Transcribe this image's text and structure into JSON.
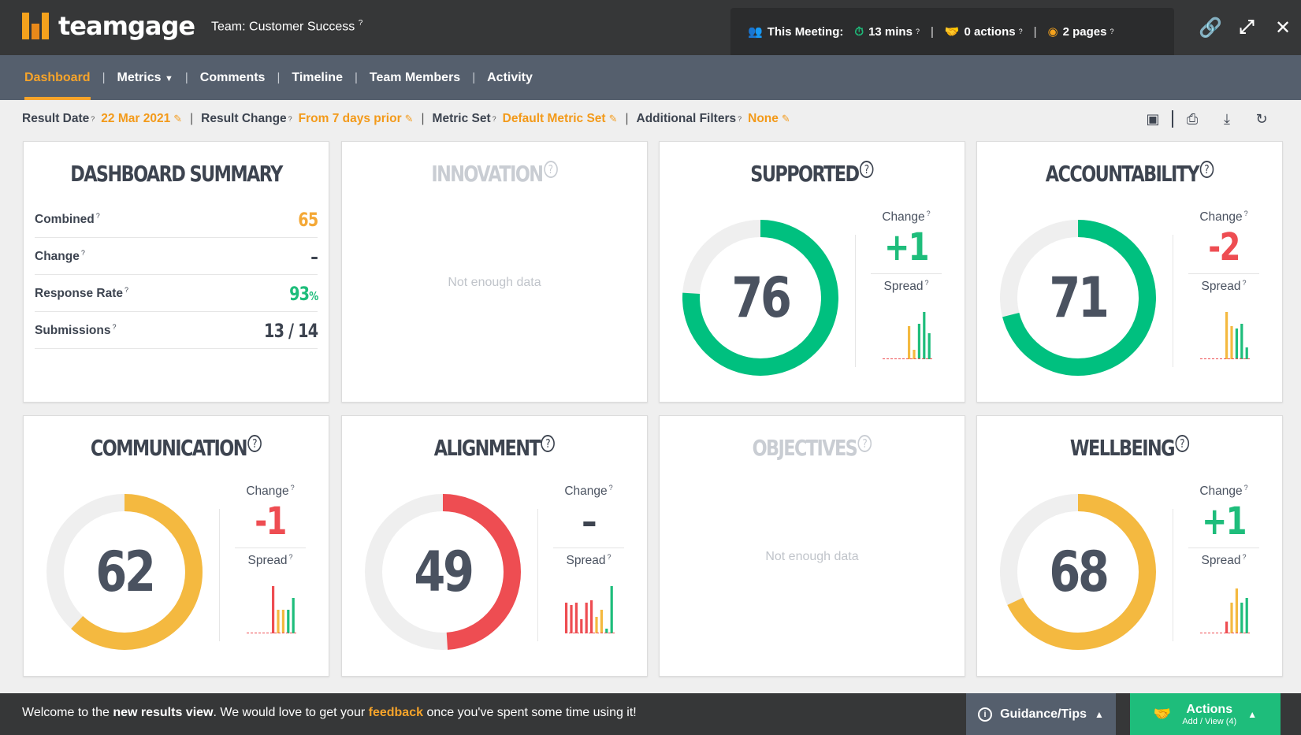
{
  "app": {
    "logo_text": "teamgage",
    "team_label": "Team:",
    "team_name": "Customer Success"
  },
  "meeting": {
    "label": "This Meeting:",
    "duration": "13 mins",
    "actions": "0 actions",
    "pages": "2 pages"
  },
  "nav": [
    "Dashboard",
    "Metrics",
    "Comments",
    "Timeline",
    "Team Members",
    "Activity"
  ],
  "filters": {
    "result_date_label": "Result Date",
    "result_date": "22 Mar 2021",
    "result_change_label": "Result Change",
    "result_change": "From 7 days prior",
    "metric_set_label": "Metric Set",
    "metric_set": "Default Metric Set",
    "additional_filters_label": "Additional Filters",
    "additional_filters": "None"
  },
  "summary": {
    "title": "DASHBOARD SUMMARY",
    "rows": [
      {
        "label": "Combined",
        "value": "65",
        "color": "#f4a836"
      },
      {
        "label": "Change",
        "value": "–",
        "color": "#3d4450"
      },
      {
        "label": "Response Rate",
        "value": "93",
        "suffix": "%",
        "color": "#1ebd7b"
      },
      {
        "label": "Submissions",
        "value": "13 / 14",
        "color": "#3d4450"
      }
    ]
  },
  "labels": {
    "change": "Change",
    "spread": "Spread",
    "no_data": "Not enough data"
  },
  "metrics": [
    {
      "name": "INNOVATION",
      "has_data": false
    },
    {
      "name": "SUPPORTED",
      "has_data": true,
      "score": 76,
      "change": "+1",
      "change_color": "#1ebd7b",
      "ring_color": "#00c07f",
      "spread": [
        "r",
        "r",
        "r",
        "r",
        "r",
        "y",
        "y",
        "g",
        "g",
        "g"
      ],
      "spread_heights": [
        0,
        0,
        0,
        0,
        0,
        0.7,
        0.2,
        0.75,
        1,
        0.55
      ]
    },
    {
      "name": "ACCOUNTABILITY",
      "has_data": true,
      "score": 71,
      "change": "-2",
      "change_color": "#ee4d52",
      "ring_color": "#00c07f",
      "spread": [
        "r",
        "r",
        "r",
        "r",
        "r",
        "y",
        "y",
        "g",
        "g",
        "g"
      ],
      "spread_heights": [
        0,
        0,
        0,
        0,
        0,
        1,
        0.7,
        0.65,
        0.75,
        0.25
      ]
    },
    {
      "name": "COMMUNICATION",
      "has_data": true,
      "score": 62,
      "change": "-1",
      "change_color": "#ee4d52",
      "ring_color": "#f4b940",
      "spread": [
        "r",
        "r",
        "r",
        "r",
        "r",
        "r",
        "y",
        "y",
        "g",
        "g"
      ],
      "spread_heights": [
        0,
        0,
        0,
        0,
        0,
        1,
        0.5,
        0.5,
        0.5,
        0.75
      ]
    },
    {
      "name": "ALIGNMENT",
      "has_data": true,
      "score": 49,
      "change": "–",
      "change_color": "#3d4450",
      "ring_color": "#ee4d52",
      "spread": [
        "r",
        "r",
        "r",
        "r",
        "r",
        "r",
        "y",
        "y",
        "g",
        "g"
      ],
      "spread_heights": [
        0.65,
        0.6,
        0.65,
        0.3,
        0.65,
        0.7,
        0.35,
        0.5,
        0.1,
        1
      ]
    },
    {
      "name": "OBJECTIVES",
      "has_data": false
    },
    {
      "name": "WELLBEING",
      "has_data": true,
      "score": 68,
      "change": "+1",
      "change_color": "#1ebd7b",
      "ring_color": "#f4b940",
      "spread": [
        "r",
        "r",
        "r",
        "r",
        "r",
        "r",
        "y",
        "y",
        "g",
        "g"
      ],
      "spread_heights": [
        0,
        0,
        0,
        0,
        0,
        0.25,
        0.65,
        0.95,
        0.65,
        0.75
      ]
    }
  ],
  "footer": {
    "msg_1": "Welcome to the ",
    "msg_bold": "new results view",
    "msg_2": ". We would love to get your ",
    "msg_link": "feedback",
    "msg_3": " once you've spent some time using it!",
    "guidance": "Guidance/Tips",
    "actions_title": "Actions",
    "actions_sub": "Add / View (4)"
  },
  "icons": [
    "logo-icon",
    "help-icon",
    "users-icon",
    "timer-icon",
    "handshake-icon",
    "eye-icon",
    "link-icon",
    "expand-icon",
    "close-icon",
    "edit-icon",
    "teams-icon",
    "print-icon",
    "download-icon",
    "refresh-icon",
    "info-icon",
    "chevron-up-icon"
  ]
}
